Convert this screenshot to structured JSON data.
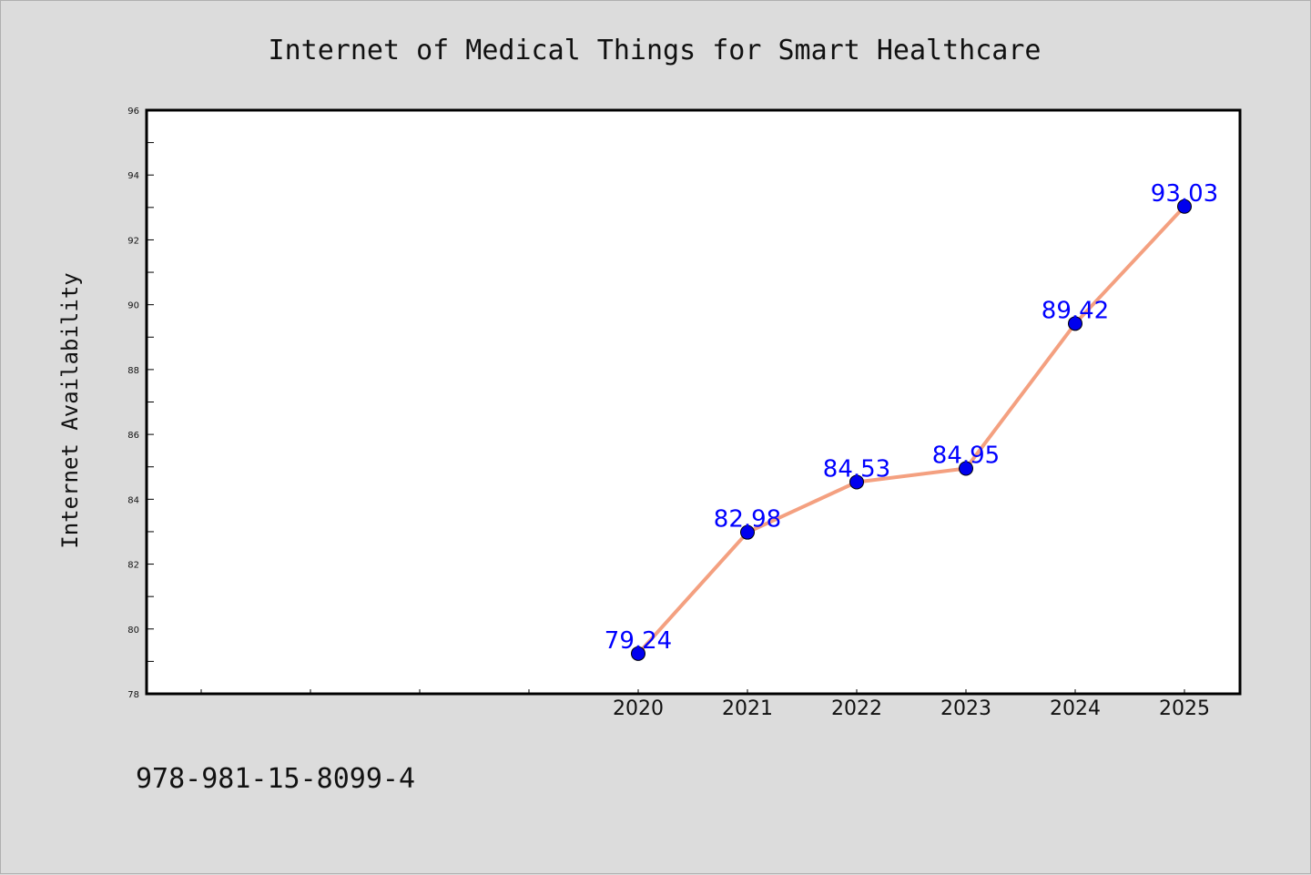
{
  "chart_data": {
    "type": "line",
    "title": "Internet of Medical Things for Smart Healthcare",
    "xlabel": "",
    "ylabel": "Internet Availability",
    "categories": [
      "2020",
      "2021",
      "2022",
      "2023",
      "2024",
      "2025"
    ],
    "series": [
      {
        "values": [
          79.24,
          82.98,
          84.53,
          84.95,
          89.42,
          93.03
        ]
      }
    ],
    "data_labels": [
      "79.24",
      "82.98",
      "84.53",
      "84.95",
      "89.42",
      "93.03"
    ],
    "ylim": [
      78,
      96
    ],
    "yticks": [
      "78",
      "80",
      "82",
      "84",
      "86",
      "88",
      "90",
      "92",
      "94",
      "96"
    ],
    "grid": false,
    "legend": "none",
    "line_color": "#f4a080",
    "marker_color": "#0000ee",
    "label_color": "#0000ff"
  },
  "footer": {
    "isbn": "978-981-15-8099-4"
  },
  "colors": {
    "background": "#dcdcdc",
    "plot_background": "#ffffff",
    "axis": "#000000"
  }
}
